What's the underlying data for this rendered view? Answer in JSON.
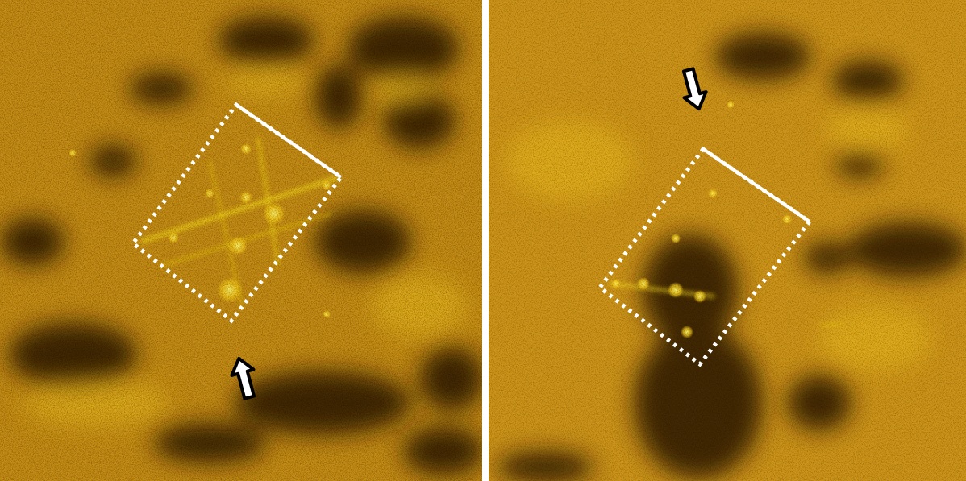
{
  "figure": {
    "panels": [
      {
        "id": "left",
        "overlay": {
          "outline": "dotted-rectangle",
          "edge_marker": "solid-white-line",
          "arrow": "up-arrow",
          "colors": {
            "outline": "#ffffff",
            "arrow_fill": "#ffffff",
            "arrow_stroke": "#000000"
          }
        }
      },
      {
        "id": "right",
        "overlay": {
          "outline": "dotted-rectangle",
          "edge_marker": "solid-white-line",
          "arrow": "down-arrow",
          "colors": {
            "outline": "#ffffff",
            "arrow_fill": "#ffffff",
            "arrow_stroke": "#000000"
          }
        }
      }
    ],
    "colors": {
      "background": "#c98f14",
      "bright": "#ffe21a",
      "dark": "#1a0e00"
    }
  }
}
